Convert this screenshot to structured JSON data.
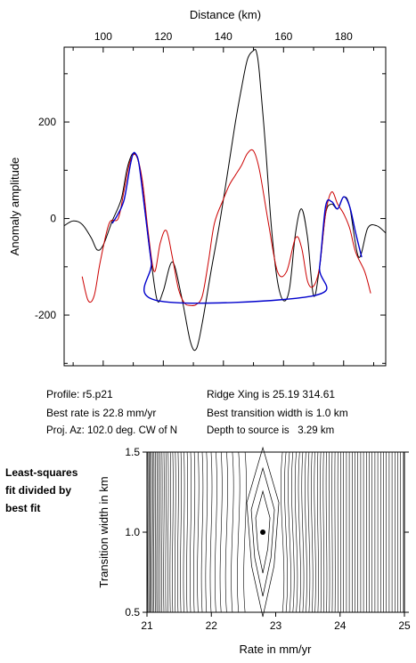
{
  "profile_chart": {
    "chart_data": {
      "type": "line",
      "xlabel": "Distance (km)",
      "ylabel": "Anomaly amplitude",
      "xlim": [
        87,
        194
      ],
      "ylim": [
        -305,
        355
      ],
      "xticks": [
        100,
        120,
        140,
        160,
        180
      ],
      "yticks": [
        -200,
        0,
        200
      ],
      "x_axis_position": "top",
      "grid": false,
      "series": [
        {
          "color": "#000000",
          "x": [
            87,
            90,
            93,
            96,
            98,
            100,
            103,
            106,
            108,
            110,
            112,
            114,
            116,
            118,
            120,
            123,
            126,
            129,
            131,
            133,
            136,
            139,
            142,
            144,
            146,
            148,
            150,
            151,
            152,
            154,
            156,
            158,
            160,
            162,
            164,
            166,
            168,
            170,
            172,
            174,
            176,
            178,
            180,
            182,
            185,
            188,
            191,
            194
          ],
          "y": [
            -15,
            -5,
            -12,
            -40,
            -65,
            -55,
            -5,
            40,
            105,
            135,
            110,
            10,
            -90,
            -170,
            -150,
            -90,
            -160,
            -255,
            -270,
            -215,
            -105,
            0,
            120,
            200,
            270,
            330,
            348,
            345,
            300,
            150,
            -20,
            -130,
            -170,
            -145,
            -30,
            20,
            -40,
            -160,
            -100,
            10,
            30,
            20,
            45,
            25,
            -80,
            -20,
            -15,
            -30
          ]
        },
        {
          "color": "#cc0000",
          "x": [
            93,
            95,
            97,
            99,
            102,
            105,
            107,
            109,
            111,
            113,
            115,
            117,
            119,
            121,
            123,
            125,
            127,
            129,
            131,
            133,
            135,
            137,
            140,
            142,
            144,
            146,
            148,
            150,
            152,
            155,
            158,
            161,
            164,
            166,
            168,
            170,
            172,
            174,
            176,
            178,
            180,
            182,
            184,
            187,
            189
          ],
          "y": [
            -120,
            -170,
            -160,
            -90,
            -10,
            0,
            60,
            120,
            130,
            80,
            -30,
            -110,
            -50,
            -25,
            -80,
            -145,
            -175,
            -180,
            -178,
            -160,
            -90,
            -10,
            40,
            70,
            90,
            110,
            135,
            140,
            100,
            -10,
            -110,
            -110,
            -40,
            -60,
            -130,
            -140,
            -100,
            10,
            55,
            30,
            10,
            -20,
            -70,
            -110,
            -155
          ]
        },
        {
          "color": "#0000cc",
          "x": [
            103,
            105,
            107,
            109,
            110,
            111,
            112,
            114,
            116,
            118,
            170,
            172,
            174,
            176,
            178,
            180,
            182,
            184,
            186
          ],
          "y": [
            -10,
            10,
            40,
            110,
            135,
            132,
            110,
            10,
            -90,
            -170,
            -160,
            -100,
            25,
            35,
            20,
            45,
            25,
            -30,
            -80
          ]
        }
      ]
    }
  },
  "info": {
    "profile": "Profile: r5.p21",
    "best_rate": "Best rate is 22.8 mm/yr",
    "proj_az": "Proj. Az: 102.0 deg. CW of N",
    "ridge_xing": "Ridge Xing is 25.19 314.61",
    "best_transition": "Best transition width is 1.0 km",
    "depth": "Depth to source is   3.29 km"
  },
  "side_label": {
    "line1": "Least-squares",
    "line2": "fit divided by",
    "line3": "best fit"
  },
  "contour_chart": {
    "chart_data": {
      "type": "contour",
      "xlabel": "Rate in mm/yr",
      "ylabel": "Transition width in km",
      "xlim": [
        21,
        25
      ],
      "ylim": [
        0.5,
        1.5
      ],
      "xticks": [
        21,
        22,
        23,
        24,
        25
      ],
      "yticks": [
        0.5,
        1.0,
        1.5
      ],
      "best_fit": {
        "rate": 22.8,
        "transition_width": 1.0
      }
    }
  }
}
